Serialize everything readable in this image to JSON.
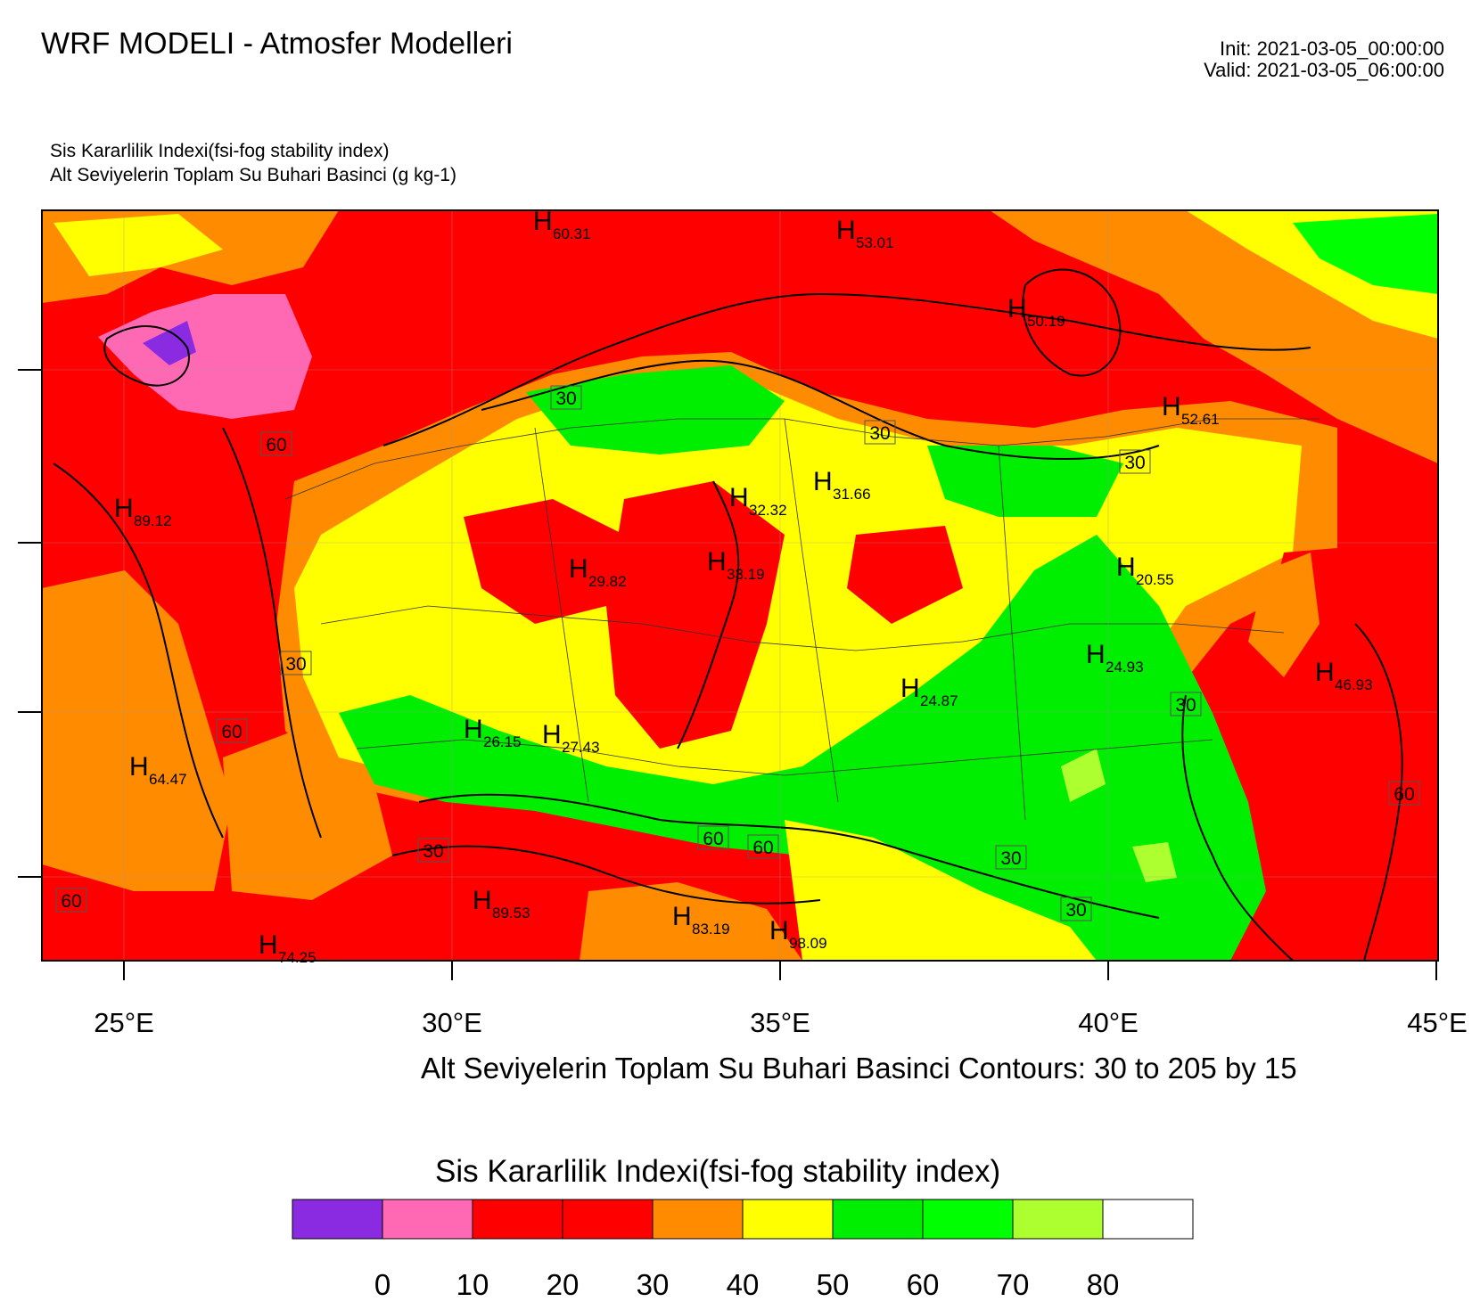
{
  "header": {
    "title": "WRF MODELI - Atmosfer Modelleri",
    "init": "Init: 2021-03-05_00:00:00",
    "valid": "Valid: 2021-03-05_06:00:00"
  },
  "subtitles": {
    "field1": "Sis Kararlilik Indexi(fsi-fog stability index)",
    "field2": "Alt Seviyelerin Toplam Su Buhari Basinci   (g kg-1)"
  },
  "map": {
    "lon_labels": [
      "25°E",
      "30°E",
      "35°E",
      "40°E",
      "45°E"
    ],
    "highs": [
      {
        "label": "H",
        "value": "60.31"
      },
      {
        "label": "H",
        "value": "53.01"
      },
      {
        "label": "H",
        "value": "50.19"
      },
      {
        "label": "H",
        "value": "52.61"
      },
      {
        "label": "H",
        "value": "89.12"
      },
      {
        "label": "H",
        "value": "32.32"
      },
      {
        "label": "H",
        "value": "31.66"
      },
      {
        "label": "H",
        "value": "29.82"
      },
      {
        "label": "H",
        "value": "33.19"
      },
      {
        "label": "H",
        "value": "20.55"
      },
      {
        "label": "H",
        "value": "24.93"
      },
      {
        "label": "H",
        "value": "46.93"
      },
      {
        "label": "H",
        "value": "24.87"
      },
      {
        "label": "H",
        "value": "26.15"
      },
      {
        "label": "H",
        "value": "27.43"
      },
      {
        "label": "H",
        "value": "64.47"
      },
      {
        "label": "H",
        "value": "89.53"
      },
      {
        "label": "H",
        "value": "83.19"
      },
      {
        "label": "H",
        "value": "98.09"
      },
      {
        "label": "H",
        "value": "74.25"
      }
    ],
    "contour_labels": [
      "30",
      "30",
      "30",
      "60",
      "30",
      "60",
      "30",
      "30",
      "60",
      "30",
      "60",
      "30",
      "60",
      "60"
    ],
    "contour_note": "Alt Seviyelerin Toplam Su Buhari Basinci Contours: 30 to 205 by 15"
  },
  "legend": {
    "title": "Sis Kararlilik Indexi(fsi-fog stability index)",
    "swatch_colors": [
      "#8a2be2",
      "#ff69b4",
      "#ff0000",
      "#ff0000",
      "#ff8c00",
      "#ffff00",
      "#00ee00",
      "#00ff00",
      "#adff2f",
      "#ffffff"
    ],
    "tick_labels": [
      "0",
      "10",
      "20",
      "30",
      "40",
      "50",
      "60",
      "70",
      "80"
    ]
  }
}
